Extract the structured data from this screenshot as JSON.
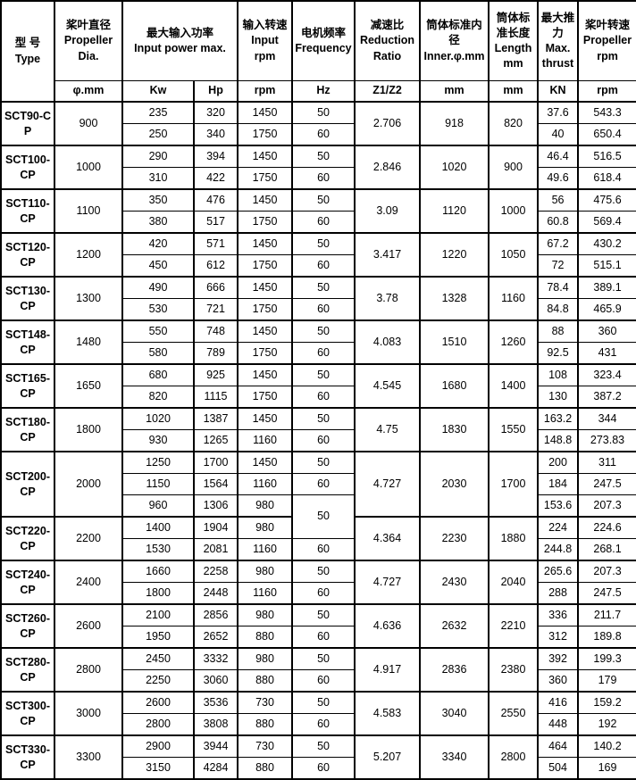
{
  "colors": {
    "border": "#000000",
    "text": "#000000",
    "background": "#ffffff"
  },
  "table": {
    "header": {
      "type": {
        "zh": "型 号",
        "en": "Type"
      },
      "dia": {
        "zh": "桨叶直径",
        "en": "Propeller Dia."
      },
      "power": {
        "zh": "最大输入功率",
        "en": "Input power max."
      },
      "input_rpm": {
        "zh": "输入转速",
        "en": "Input rpm"
      },
      "freq": {
        "zh": "电机频率",
        "en": "Frequency"
      },
      "ratio": {
        "zh": "减速比",
        "en": "Reduction Ratio"
      },
      "inner": {
        "zh": "筒体标准内径",
        "en": "Inner.φ.mm"
      },
      "length": {
        "zh": "筒体标准长度",
        "en": "Length mm"
      },
      "thrust": {
        "zh": "最大推力",
        "en": "Max. thrust"
      },
      "prop_rpm": {
        "zh": "桨叶转速",
        "en": "Propeller rpm"
      }
    },
    "units": {
      "dia": "φ.mm",
      "kw": "Kw",
      "hp": "Hp",
      "rpm": "rpm",
      "hz": "Hz",
      "ratio": "Z1/Z2",
      "inner": "mm",
      "length": "mm",
      "thrust": "KN",
      "prop_rpm": "rpm"
    },
    "groups": [
      {
        "type": "SCT90-CP",
        "dia": "900",
        "ratio": "2.706",
        "inner": "918",
        "length": "820",
        "rows": [
          {
            "kw": "235",
            "hp": "320",
            "rpm": "1450",
            "hz": "50",
            "thrust": "37.6",
            "prop": "543.3"
          },
          {
            "kw": "250",
            "hp": "340",
            "rpm": "1750",
            "hz": "60",
            "thrust": "40",
            "prop": "650.4"
          }
        ]
      },
      {
        "type": "SCT100-CP",
        "dia": "1000",
        "ratio": "2.846",
        "inner": "1020",
        "length": "900",
        "rows": [
          {
            "kw": "290",
            "hp": "394",
            "rpm": "1450",
            "hz": "50",
            "thrust": "46.4",
            "prop": "516.5"
          },
          {
            "kw": "310",
            "hp": "422",
            "rpm": "1750",
            "hz": "60",
            "thrust": "49.6",
            "prop": "618.4"
          }
        ]
      },
      {
        "type": "SCT110-CP",
        "dia": "1100",
        "ratio": "3.09",
        "inner": "1120",
        "length": "1000",
        "rows": [
          {
            "kw": "350",
            "hp": "476",
            "rpm": "1450",
            "hz": "50",
            "thrust": "56",
            "prop": "475.6"
          },
          {
            "kw": "380",
            "hp": "517",
            "rpm": "1750",
            "hz": "60",
            "thrust": "60.8",
            "prop": "569.4"
          }
        ]
      },
      {
        "type": "SCT120-CP",
        "dia": "1200",
        "ratio": "3.417",
        "inner": "1220",
        "length": "1050",
        "rows": [
          {
            "kw": "420",
            "hp": "571",
            "rpm": "1450",
            "hz": "50",
            "thrust": "67.2",
            "prop": "430.2"
          },
          {
            "kw": "450",
            "hp": "612",
            "rpm": "1750",
            "hz": "60",
            "thrust": "72",
            "prop": "515.1"
          }
        ]
      },
      {
        "type": "SCT130-CP",
        "dia": "1300",
        "ratio": "3.78",
        "inner": "1328",
        "length": "1160",
        "rows": [
          {
            "kw": "490",
            "hp": "666",
            "rpm": "1450",
            "hz": "50",
            "thrust": "78.4",
            "prop": "389.1"
          },
          {
            "kw": "530",
            "hp": "721",
            "rpm": "1750",
            "hz": "60",
            "thrust": "84.8",
            "prop": "465.9"
          }
        ]
      },
      {
        "type": "SCT148-CP",
        "dia": "1480",
        "ratio": "4.083",
        "inner": "1510",
        "length": "1260",
        "rows": [
          {
            "kw": "550",
            "hp": "748",
            "rpm": "1450",
            "hz": "50",
            "thrust": "88",
            "prop": "360"
          },
          {
            "kw": "580",
            "hp": "789",
            "rpm": "1750",
            "hz": "60",
            "thrust": "92.5",
            "prop": "431"
          }
        ]
      },
      {
        "type": "SCT165-CP",
        "dia": "1650",
        "ratio": "4.545",
        "inner": "1680",
        "length": "1400",
        "rows": [
          {
            "kw": "680",
            "hp": "925",
            "rpm": "1450",
            "hz": "50",
            "thrust": "108",
            "prop": "323.4"
          },
          {
            "kw": "820",
            "hp": "1115",
            "rpm": "1750",
            "hz": "60",
            "thrust": "130",
            "prop": "387.2"
          }
        ]
      },
      {
        "type": "SCT180-CP",
        "dia": "1800",
        "ratio": "4.75",
        "inner": "1830",
        "length": "1550",
        "rows": [
          {
            "kw": "1020",
            "hp": "1387",
            "rpm": "1450",
            "hz": "50",
            "thrust": "163.2",
            "prop": "344"
          },
          {
            "kw": "930",
            "hp": "1265",
            "rpm": "1160",
            "hz": "60",
            "thrust": "148.8",
            "prop": "273.83"
          }
        ]
      },
      {
        "type": "SCT200-CP",
        "dia": "2000",
        "ratio": "4.727",
        "inner": "2030",
        "length": "1700",
        "rows": [
          {
            "kw": "1250",
            "hp": "1700",
            "rpm": "1450",
            "hz": "50",
            "thrust": "200",
            "prop": "311"
          },
          {
            "kw": "1150",
            "hp": "1564",
            "rpm": "1160",
            "hz": "60",
            "thrust": "184",
            "prop": "247.5"
          },
          {
            "kw": "960",
            "hp": "1306",
            "rpm": "980",
            "hz": "50",
            "hz_span": 2,
            "thrust": "153.6",
            "prop": "207.3"
          }
        ]
      },
      {
        "type": "SCT220-CP",
        "dia": "2200",
        "ratio": "4.364",
        "inner": "2230",
        "length": "1880",
        "rows": [
          {
            "kw": "1400",
            "hp": "1904",
            "rpm": "980",
            "hz": null,
            "thrust": "224",
            "prop": "224.6"
          },
          {
            "kw": "1530",
            "hp": "2081",
            "rpm": "1160",
            "hz": "60",
            "thrust": "244.8",
            "prop": "268.1"
          }
        ]
      },
      {
        "type": "SCT240-CP",
        "dia": "2400",
        "ratio": "4.727",
        "inner": "2430",
        "length": "2040",
        "rows": [
          {
            "kw": "1660",
            "hp": "2258",
            "rpm": "980",
            "hz": "50",
            "thrust": "265.6",
            "prop": "207.3"
          },
          {
            "kw": "1800",
            "hp": "2448",
            "rpm": "1160",
            "hz": "60",
            "thrust": "288",
            "prop": "247.5"
          }
        ]
      },
      {
        "type": "SCT260-CP",
        "dia": "2600",
        "ratio": "4.636",
        "inner": "2632",
        "length": "2210",
        "rows": [
          {
            "kw": "2100",
            "hp": "2856",
            "rpm": "980",
            "hz": "50",
            "thrust": "336",
            "prop": "211.7"
          },
          {
            "kw": "1950",
            "hp": "2652",
            "rpm": "880",
            "hz": "60",
            "thrust": "312",
            "prop": "189.8"
          }
        ]
      },
      {
        "type": "SCT280-CP",
        "dia": "2800",
        "ratio": "4.917",
        "inner": "2836",
        "length": "2380",
        "rows": [
          {
            "kw": "2450",
            "hp": "3332",
            "rpm": "980",
            "hz": "50",
            "thrust": "392",
            "prop": "199.3"
          },
          {
            "kw": "2250",
            "hp": "3060",
            "rpm": "880",
            "hz": "60",
            "thrust": "360",
            "prop": "179"
          }
        ]
      },
      {
        "type": "SCT300-CP",
        "dia": "3000",
        "ratio": "4.583",
        "inner": "3040",
        "length": "2550",
        "rows": [
          {
            "kw": "2600",
            "hp": "3536",
            "rpm": "730",
            "hz": "50",
            "thrust": "416",
            "prop": "159.2"
          },
          {
            "kw": "2800",
            "hp": "3808",
            "rpm": "880",
            "hz": "60",
            "thrust": "448",
            "prop": "192"
          }
        ]
      },
      {
        "type": "SCT330-CP",
        "dia": "3300",
        "ratio": "5.207",
        "inner": "3340",
        "length": "2800",
        "rows": [
          {
            "kw": "2900",
            "hp": "3944",
            "rpm": "730",
            "hz": "50",
            "thrust": "464",
            "prop": "140.2"
          },
          {
            "kw": "3150",
            "hp": "4284",
            "rpm": "880",
            "hz": "60",
            "thrust": "504",
            "prop": "169"
          }
        ]
      }
    ]
  }
}
